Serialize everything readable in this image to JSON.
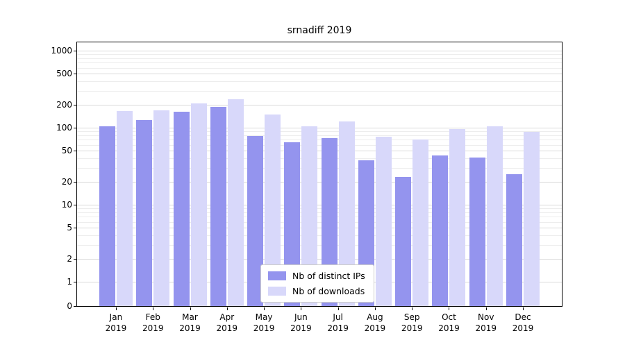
{
  "chart_data": {
    "type": "bar",
    "title": "srnadiff 2019",
    "xlabel": "",
    "ylabel": "",
    "yscale": "symlog",
    "grid": true,
    "legend_position": "lower center inside",
    "categories": [
      "Jan",
      "Feb",
      "Mar",
      "Apr",
      "May",
      "Jun",
      "Jul",
      "Aug",
      "Sep",
      "Oct",
      "Nov",
      "Dec"
    ],
    "xtick_year": "2019",
    "yticks": [
      0,
      1,
      2,
      5,
      10,
      20,
      50,
      100,
      200,
      500,
      1000
    ],
    "ylim": [
      0,
      1280
    ],
    "series": [
      {
        "name": "Nb of distinct IPs",
        "color": "#9494ee",
        "values": [
          105,
          125,
          160,
          188,
          78,
          65,
          74,
          38,
          23,
          44,
          41,
          25
        ]
      },
      {
        "name": "Nb of downloads",
        "color": "#d8d8fa",
        "values": [
          165,
          168,
          205,
          235,
          148,
          105,
          120,
          76,
          71,
          95,
          105,
          89
        ]
      }
    ]
  }
}
